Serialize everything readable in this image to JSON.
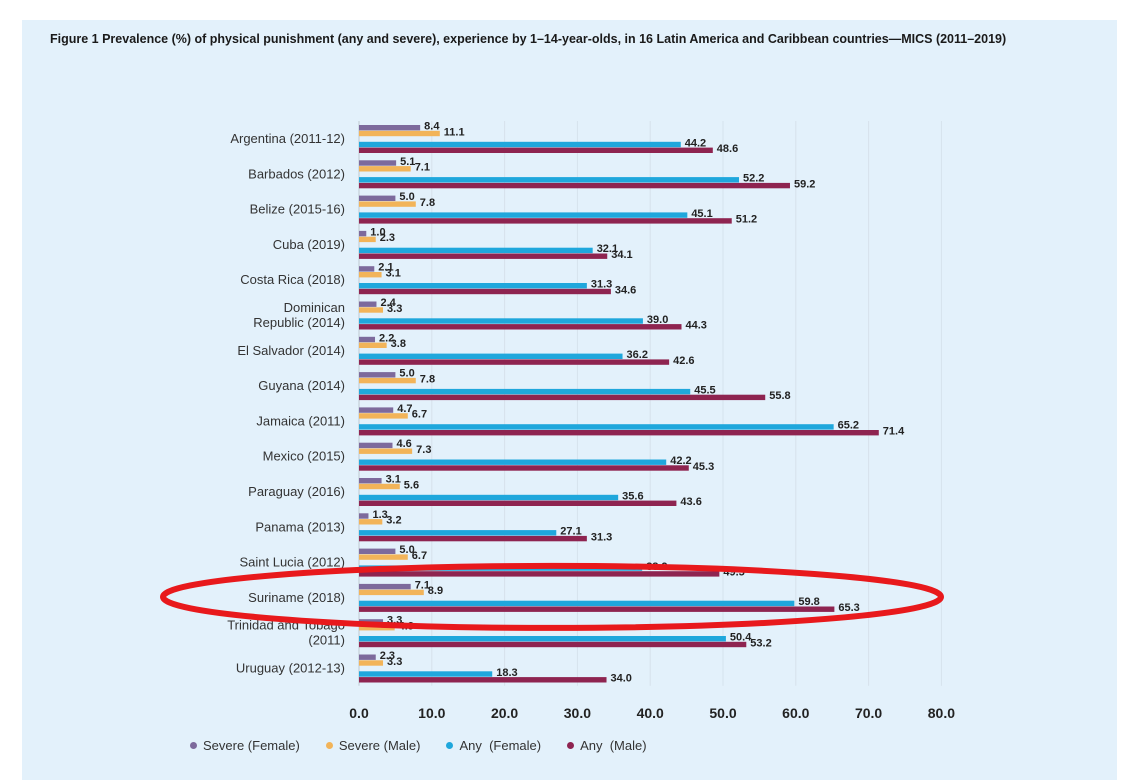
{
  "chart_data": {
    "type": "bar",
    "orientation": "horizontal",
    "title": "Figure 1 Prevalence (%) of physical punishment (any and severe), experience by 1–14-year-olds, in 16 Latin America and Caribbean countries—MICS (2011–2019)",
    "categories": [
      "Argentina (2011-12)",
      "Barbados (2012)",
      "Belize (2015-16)",
      "Cuba (2019)",
      "Costa Rica (2018)",
      "Dominican\nRepublic (2014)",
      "El Salvador (2014)",
      "Guyana (2014)",
      "Jamaica (2011)",
      "Mexico (2015)",
      "Paraguay (2016)",
      "Panama (2013)",
      "Saint Lucia (2012)",
      "Suriname (2018)",
      "Trinidad and Tobago\n(2011)",
      "Uruguay (2012-13)"
    ],
    "series": [
      {
        "name": "Severe (Female)",
        "color": "#7d6a9c",
        "values": [
          8.4,
          5.1,
          5.0,
          1.0,
          2.1,
          2.4,
          2.2,
          5.0,
          4.7,
          4.6,
          3.1,
          1.3,
          5.0,
          7.1,
          3.3,
          2.3
        ]
      },
      {
        "name": "Severe (Male)",
        "color": "#f2b459",
        "values": [
          11.1,
          7.1,
          7.8,
          2.3,
          3.1,
          3.3,
          3.8,
          7.8,
          6.7,
          7.3,
          5.6,
          3.2,
          6.7,
          8.9,
          4.9,
          3.3
        ]
      },
      {
        "name": "Any  (Female)",
        "color": "#1fa7dc",
        "values": [
          44.2,
          52.2,
          45.1,
          32.1,
          31.3,
          39.0,
          36.2,
          45.5,
          65.2,
          42.2,
          35.6,
          27.1,
          38.9,
          59.8,
          50.4,
          18.3
        ]
      },
      {
        "name": "Any  (Male)",
        "color": "#8e2450",
        "values": [
          48.6,
          59.2,
          51.2,
          34.1,
          34.6,
          44.3,
          42.6,
          55.8,
          71.4,
          45.3,
          43.6,
          31.3,
          49.5,
          65.3,
          53.2,
          34.0
        ]
      }
    ],
    "xlim": [
      0,
      80
    ],
    "xticks": [
      "0.0",
      "10.0",
      "20.0",
      "30.0",
      "40.0",
      "50.0",
      "60.0",
      "70.0",
      "80.0"
    ],
    "grid": true,
    "legend": "bottom",
    "highlight": {
      "category": "Suriname (2018)",
      "shape": "ellipse",
      "color": "#e8191c"
    }
  }
}
